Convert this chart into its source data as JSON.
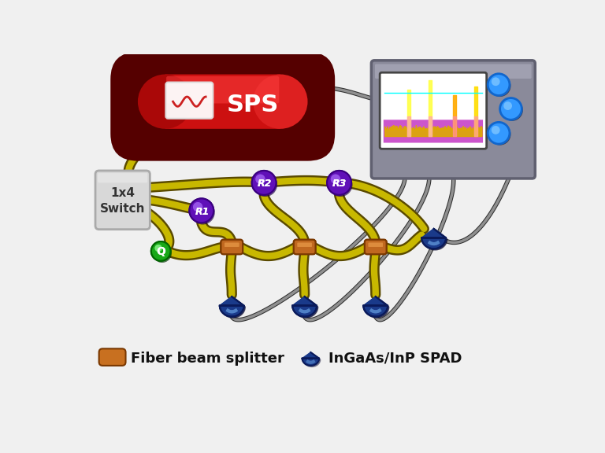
{
  "bg_color": "#f0f0f0",
  "sps_label": "SPS",
  "switch_label": "1x4\nSwitch",
  "fiber_color": "#c8b800",
  "fiber_dark": "#5a4a00",
  "splitter_color": "#c87020",
  "splitter_dark": "#6a3800",
  "r_node_color": "#6010b0",
  "r_node_hl": "#9050e0",
  "q_node_color": "#18a018",
  "q_node_hl": "#60e060",
  "spad_color": "#1a3a8a",
  "spad_hl": "#3060c0",
  "device_color": "#9090a0",
  "screen_bg": "#cc88cc",
  "btn_color": "#2288ee",
  "cable_color": "#909090",
  "cable_dark": "#404040",
  "legend_fbs_label": "Fiber beam splitter",
  "legend_spad_label": "InGaAs/InP SPAD",
  "node_labels": [
    "R1",
    "R2",
    "R3"
  ],
  "q_label": "Q"
}
